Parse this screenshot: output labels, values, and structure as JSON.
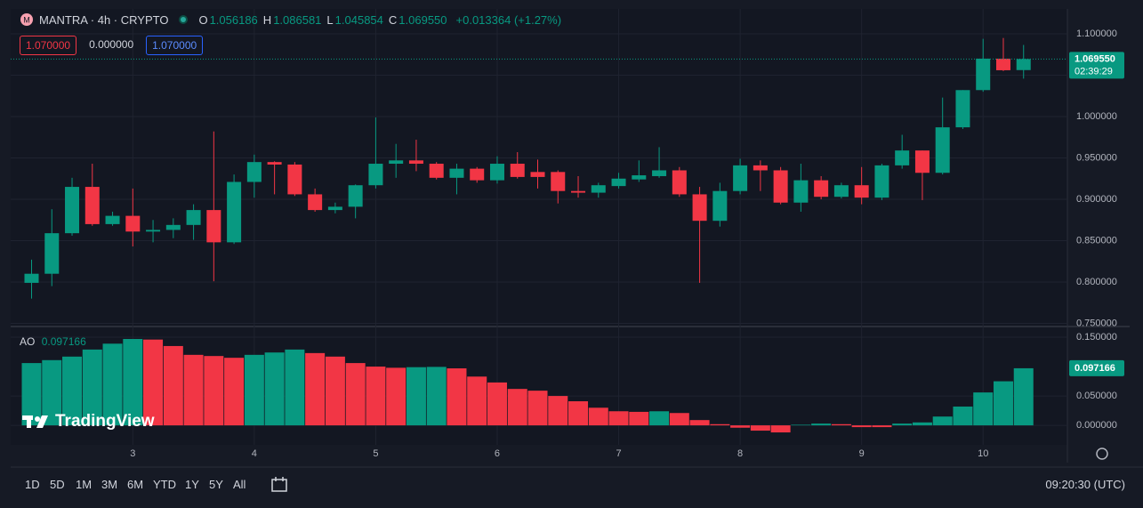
{
  "header": {
    "symbol": "MANTRA · 4h · CRYPTO",
    "ohlc": [
      {
        "key": "O",
        "value": "1.056186"
      },
      {
        "key": "H",
        "value": "1.086581"
      },
      {
        "key": "L",
        "value": "1.045854"
      },
      {
        "key": "C",
        "value": "1.069550"
      }
    ],
    "change": "+0.013364 (+1.27%)"
  },
  "order_boxes": [
    "1.070000",
    "0.000000",
    "1.070000"
  ],
  "watermark": "TradingView",
  "toolbar": {
    "ranges": [
      "1D",
      "5D",
      "1M",
      "3M",
      "6M",
      "YTD",
      "1Y",
      "5Y",
      "All"
    ],
    "clock": "09:20:30 (UTC)"
  },
  "chart_data": [
    {
      "type": "candlestick",
      "categories": [
        null,
        null,
        null,
        null,
        null,
        "3",
        null,
        null,
        null,
        null,
        null,
        "4",
        null,
        null,
        null,
        null,
        null,
        "5",
        null,
        null,
        null,
        null,
        null,
        "6",
        null,
        null,
        null,
        null,
        null,
        "7",
        null,
        null,
        null,
        null,
        null,
        "8",
        null,
        null,
        null,
        null,
        null,
        "9",
        null,
        null,
        null,
        null,
        null,
        "10",
        null,
        null
      ],
      "open": [
        0.799,
        0.81,
        0.859,
        0.915,
        0.87,
        0.88,
        0.861,
        0.863,
        0.869,
        0.887,
        0.848,
        0.921,
        0.945,
        0.942,
        0.906,
        0.887,
        0.891,
        0.917,
        0.943,
        0.947,
        0.943,
        0.926,
        0.937,
        0.923,
        0.943,
        0.933,
        0.933,
        0.91,
        0.908,
        0.916,
        0.924,
        0.928,
        0.935,
        0.906,
        0.874,
        0.91,
        0.941,
        0.935,
        0.896,
        0.923,
        0.903,
        0.917,
        0.902,
        0.941,
        0.959,
        0.932,
        0.987,
        1.032,
        1.07,
        1.056186
      ],
      "high": [
        0.827,
        0.888,
        0.926,
        0.943,
        0.885,
        0.913,
        0.875,
        0.877,
        0.894,
        0.982,
        0.93,
        0.954,
        0.946,
        0.945,
        0.913,
        0.896,
        0.918,
        0.999,
        0.967,
        0.972,
        0.945,
        0.943,
        0.939,
        0.952,
        0.957,
        0.948,
        0.935,
        0.928,
        0.92,
        0.932,
        0.947,
        0.963,
        0.939,
        0.915,
        0.92,
        0.949,
        0.947,
        0.939,
        0.943,
        0.928,
        0.92,
        0.939,
        0.943,
        0.978,
        0.959,
        1.023,
        1.032,
        1.094,
        1.095,
        1.086581
      ],
      "low": [
        0.78,
        0.795,
        0.856,
        0.868,
        0.868,
        0.843,
        0.848,
        0.853,
        0.851,
        0.801,
        0.846,
        0.902,
        0.906,
        0.904,
        0.885,
        0.883,
        0.877,
        0.913,
        0.926,
        0.934,
        0.924,
        0.906,
        0.92,
        0.919,
        0.925,
        0.913,
        0.895,
        0.902,
        0.902,
        0.913,
        0.921,
        0.926,
        0.903,
        0.799,
        0.867,
        0.906,
        0.91,
        0.894,
        0.885,
        0.9,
        0.901,
        0.894,
        0.899,
        0.937,
        0.899,
        0.93,
        0.985,
        1.03,
        1.055,
        1.045854
      ],
      "close": [
        0.81,
        0.859,
        0.915,
        0.87,
        0.88,
        0.861,
        0.863,
        0.869,
        0.887,
        0.848,
        0.921,
        0.945,
        0.942,
        0.906,
        0.887,
        0.891,
        0.917,
        0.943,
        0.947,
        0.943,
        0.926,
        0.937,
        0.923,
        0.943,
        0.927,
        0.927,
        0.91,
        0.908,
        0.917,
        0.925,
        0.929,
        0.935,
        0.906,
        0.874,
        0.91,
        0.941,
        0.935,
        0.896,
        0.923,
        0.903,
        0.917,
        0.902,
        0.941,
        0.959,
        0.932,
        0.987,
        1.032,
        1.07,
        1.056,
        1.06955
      ],
      "up_color": "#089981",
      "down_color": "#f23645",
      "ylim": [
        0.7473,
        1.128
      ],
      "yticks": [
        {
          "value": 0.75,
          "label": "0.750000"
        },
        {
          "value": 0.8,
          "label": "0.800000"
        },
        {
          "value": 0.85,
          "label": "0.850000"
        },
        {
          "value": 0.9,
          "label": "0.900000"
        },
        {
          "value": 0.95,
          "label": "0.950000"
        },
        {
          "value": 1.0,
          "label": "1.000000"
        },
        {
          "value": 1.05,
          "label": "1.050000"
        },
        {
          "value": 1.1,
          "label": "1.100000"
        }
      ],
      "last_price": {
        "value": 1.06955,
        "label": "1.069550"
      },
      "countdown": "02:39:29",
      "grid": true
    },
    {
      "type": "bar",
      "series": [
        {
          "name": "AO",
          "values": [
            0.106,
            0.111,
            0.117,
            0.129,
            0.139,
            0.147,
            0.146,
            0.135,
            0.12,
            0.118,
            0.115,
            0.12,
            0.124,
            0.129,
            0.123,
            0.117,
            0.106,
            0.1,
            0.098,
            0.099,
            0.0995,
            0.097,
            0.083,
            0.073,
            0.062,
            0.059,
            0.05,
            0.041,
            0.03,
            0.024,
            0.023,
            0.024,
            0.021,
            0.009,
            0.002,
            -0.004,
            -0.009,
            -0.012,
            0.001,
            0.003,
            0.002,
            -0.003,
            -0.003,
            0.003,
            0.005,
            0.015,
            0.032,
            0.056,
            0.075,
            0.097166
          ],
          "colors": [
            "#089981",
            "#089981",
            "#089981",
            "#089981",
            "#089981",
            "#089981",
            "#f23645",
            "#f23645",
            "#f23645",
            "#f23645",
            "#f23645",
            "#089981",
            "#089981",
            "#089981",
            "#f23645",
            "#f23645",
            "#f23645",
            "#f23645",
            "#f23645",
            "#089981",
            "#089981",
            "#f23645",
            "#f23645",
            "#f23645",
            "#f23645",
            "#f23645",
            "#f23645",
            "#f23645",
            "#f23645",
            "#f23645",
            "#f23645",
            "#089981",
            "#f23645",
            "#f23645",
            "#f23645",
            "#f23645",
            "#f23645",
            "#f23645",
            "#089981",
            "#089981",
            "#f23645",
            "#f23645",
            "#f23645",
            "#089981",
            "#089981",
            "#089981",
            "#089981",
            "#089981",
            "#089981",
            "#089981"
          ]
        }
      ],
      "ylim": [
        -0.018,
        0.1667
      ],
      "yticks": [
        {
          "value": 0,
          "label": "0.000000"
        },
        {
          "value": 0.05,
          "label": "0.050000"
        },
        {
          "value": 0.15,
          "label": "0.150000"
        }
      ],
      "grid": true
    }
  ]
}
